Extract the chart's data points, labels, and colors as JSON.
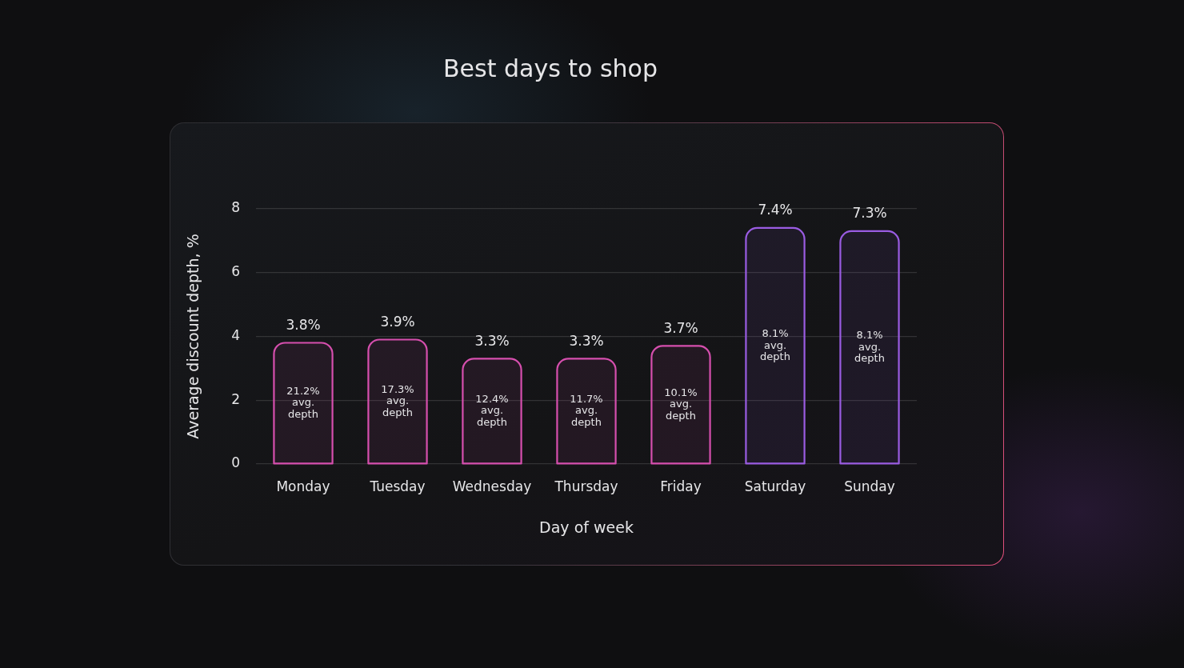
{
  "chart_data": {
    "type": "bar",
    "title": "Best days to shop",
    "xlabel": "Day of week",
    "ylabel": "Average discount depth, %",
    "categories": [
      "Monday",
      "Tuesday",
      "Wednesday",
      "Thursday",
      "Friday",
      "Saturday",
      "Sunday"
    ],
    "values": [
      3.8,
      3.9,
      3.3,
      3.3,
      3.7,
      7.4,
      7.3
    ],
    "value_labels": [
      "3.8%",
      "3.9%",
      "3.3%",
      "3.3%",
      "3.7%",
      "7.4%",
      "7.3%"
    ],
    "colors": [
      "#d64fae",
      "#d64fae",
      "#d64fae",
      "#d64fae",
      "#d64fae",
      "#9a5ce2",
      "#9a5ce2"
    ],
    "ylim": [
      0,
      8
    ],
    "yticks": [
      0,
      2,
      4,
      6,
      8
    ],
    "grid": "y",
    "annotations": [
      "21.2% avg. depth",
      "17.3% avg. depth",
      "12.4% avg. depth",
      "11.7% avg. depth",
      "10.1% avg. depth",
      "8.1% avg. depth",
      "8.1% avg. depth"
    ]
  }
}
